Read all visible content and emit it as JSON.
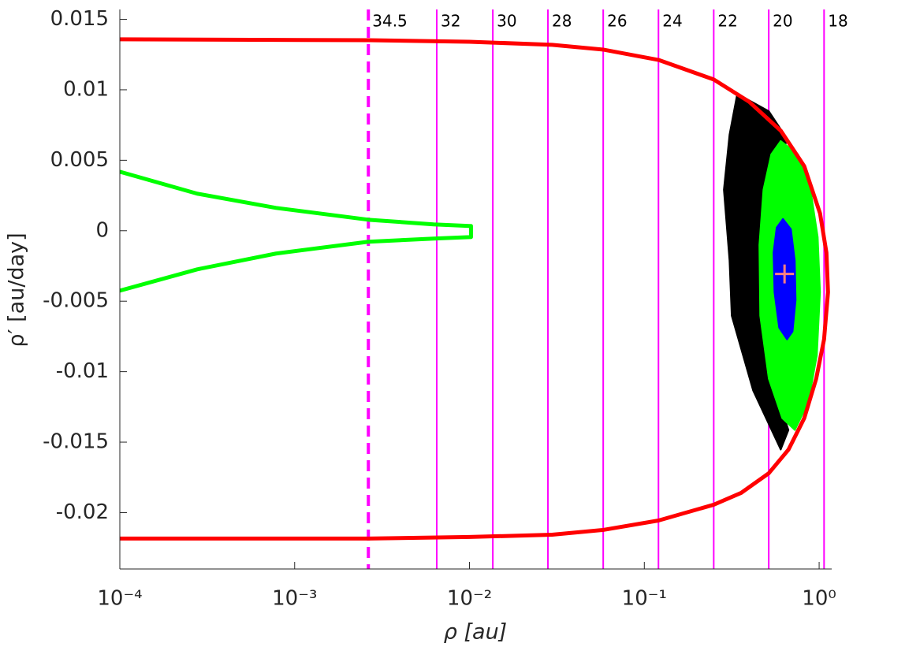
{
  "chart_data": {
    "type": "line",
    "xlabel": "ρ [au]",
    "ylabel": "ρ′ [au/day]",
    "xscale": "log",
    "xlim": [
      0.0001,
      1.18
    ],
    "ylim": [
      -0.024,
      0.0157
    ],
    "xticks": [
      {
        "value": 0.0001,
        "label": "10⁻⁴"
      },
      {
        "value": 0.001,
        "label": "10⁻³"
      },
      {
        "value": 0.01,
        "label": "10⁻²"
      },
      {
        "value": 0.1,
        "label": "10⁻¹"
      },
      {
        "value": 1,
        "label": "10⁰"
      }
    ],
    "yticks": [
      0.015,
      0.01,
      0.005,
      0,
      -0.005,
      -0.01,
      -0.015,
      -0.02
    ],
    "grid": false,
    "vlines": {
      "color": "#ff00ff",
      "x": [
        0.00264,
        0.0065,
        0.0136,
        0.0281,
        0.0582,
        0.1205,
        0.2495,
        0.515,
        1.067
      ],
      "labels": [
        "34.5",
        "32",
        "30",
        "28",
        "26",
        "24",
        "22",
        "20",
        "18"
      ],
      "dashed": [
        true,
        false,
        false,
        false,
        false,
        false,
        false,
        false,
        false
      ]
    },
    "series": [
      {
        "color": "#000000",
        "fill": true,
        "x": [
          0.34,
          0.515,
          0.668,
          0.515,
          0.455,
          0.455,
          0.532,
          0.668,
          0.603,
          0.419,
          0.316,
          0.307,
          0.285,
          0.307
        ],
        "values": [
          0.00972,
          0.00849,
          0.00637,
          0.00514,
          -0.00045,
          -0.00603,
          -0.0105,
          -0.01414,
          -0.01553,
          -0.01134,
          -0.00603,
          -0.00212,
          0.00291,
          0.00682
        ]
      },
      {
        "color": "#00ff00",
        "fill": true,
        "x": [
          0.603,
          0.757,
          0.893,
          0.982,
          1.012,
          0.971,
          0.867,
          0.726,
          0.615,
          0.515,
          0.46,
          0.455,
          0.48,
          0.532
        ],
        "values": [
          0.00637,
          0.00542,
          0.00291,
          -0.00045,
          -0.00436,
          -0.00883,
          -0.01218,
          -0.01414,
          -0.0133,
          -0.0105,
          -0.00603,
          -0.00101,
          0.00291,
          0.00542
        ]
      },
      {
        "color": "#0000ff",
        "fill": true,
        "x": [
          0.621,
          0.69,
          0.726,
          0.734,
          0.705,
          0.655,
          0.59,
          0.555,
          0.548,
          0.571
        ],
        "values": [
          0.00084,
          0.00011,
          -0.00212,
          -0.00492,
          -0.00715,
          -0.00771,
          -0.00687,
          -0.00436,
          -0.00156,
          0.00022
        ]
      },
      {
        "color": "#ff0000",
        "fill": false,
        "x": [
          0.0001,
          0.00264,
          0.01,
          0.0297,
          0.0582,
          0.1205,
          0.2495,
          0.397,
          0.603,
          0.822,
          1.012,
          1.101,
          1.124,
          1.067,
          0.962,
          0.822,
          0.668,
          0.515,
          0.358,
          0.2495,
          0.1205,
          0.0582,
          0.0297,
          0.01,
          0.00264,
          0.0001
        ],
        "values": [
          0.01358,
          0.01352,
          0.01341,
          0.01319,
          0.01285,
          0.01212,
          0.01073,
          0.00916,
          0.0071,
          0.00458,
          0.00123,
          -0.00156,
          -0.00436,
          -0.00771,
          -0.0105,
          -0.0133,
          -0.01553,
          -0.01721,
          -0.0186,
          -0.01944,
          -0.02056,
          -0.02123,
          -0.02157,
          -0.02173,
          -0.02184,
          -0.02184
        ]
      },
      {
        "color": "#00ff00",
        "fill": false,
        "x": [
          0.0001,
          0.000277,
          0.000782,
          0.00264,
          0.00624,
          0.01,
          0.0102,
          0.0102,
          0.01,
          0.00624,
          0.00264,
          0.000782,
          0.000277,
          0.0001
        ],
        "values": [
          0.00419,
          0.00263,
          0.00162,
          0.00078,
          0.00045,
          0.00034,
          0.00034,
          -0.00045,
          -0.00045,
          -0.00056,
          -0.00078,
          -0.00162,
          -0.00274,
          -0.00425
        ]
      },
      {
        "color": "#ff8080",
        "marker": "+",
        "x": [
          0.634
        ],
        "values": [
          -0.00307
        ]
      }
    ]
  }
}
